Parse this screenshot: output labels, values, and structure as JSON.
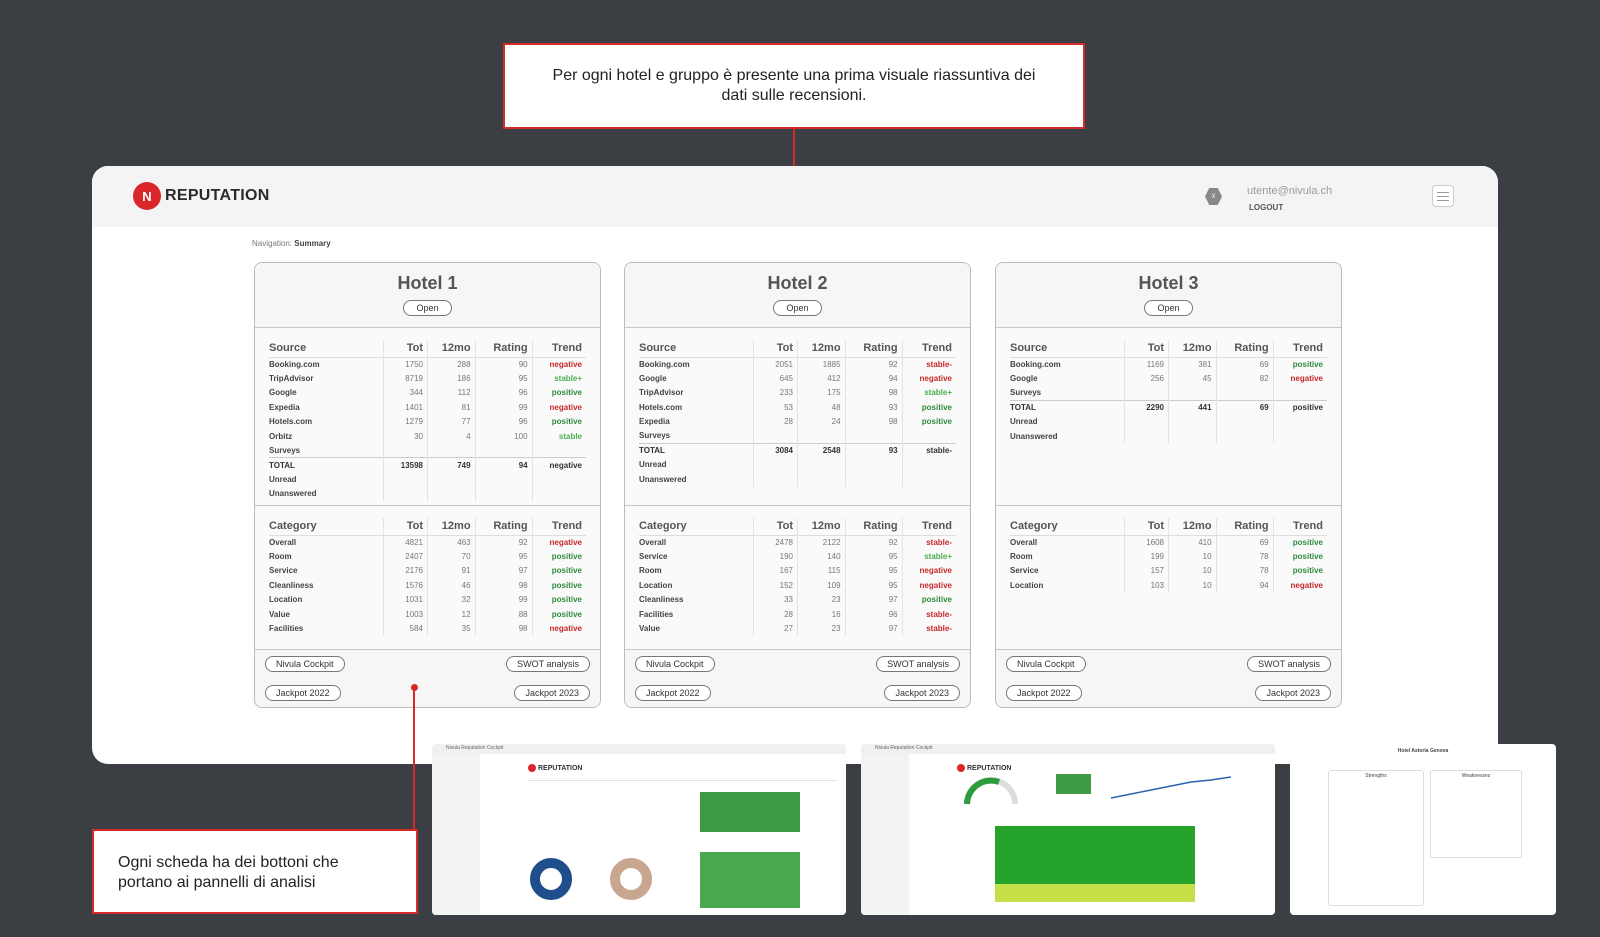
{
  "callouts": {
    "top": "Per ogni hotel e gruppo è presente una prima visuale riassuntiva dei dati sulle recensioni.",
    "bottom": "Ogni scheda ha dei bottoni che portano ai pannelli di analisi"
  },
  "app": {
    "logo_text": "REPUTATION",
    "logo_letter": "N",
    "user_badge": "X",
    "user_email": "utente@nivula.ch",
    "logout": "LOGOUT",
    "breadcrumb_prefix": "Navigation:",
    "breadcrumb_current": "Summary"
  },
  "columns": {
    "source": "Source",
    "category": "Category",
    "tot": "Tot",
    "12mo": "12mo",
    "rating": "Rating",
    "trend": "Trend"
  },
  "hotels": [
    {
      "name": "Hotel 1",
      "open": "Open",
      "sources": [
        [
          "Booking.com",
          "1750",
          "288",
          "90",
          "negative"
        ],
        [
          "TripAdvisor",
          "8719",
          "186",
          "95",
          "stable+"
        ],
        [
          "Google",
          "344",
          "112",
          "96",
          "positive"
        ],
        [
          "Expedia",
          "1401",
          "81",
          "99",
          "negative"
        ],
        [
          "Hotels.com",
          "1279",
          "77",
          "96",
          "positive"
        ],
        [
          "Orbitz",
          "30",
          "4",
          "100",
          "stable"
        ],
        [
          "Surveys",
          "",
          "",
          "",
          ""
        ],
        [
          "TOTAL",
          "13598",
          "749",
          "94",
          "negative"
        ],
        [
          "Unread",
          "",
          "",
          "",
          ""
        ],
        [
          "Unanswered",
          "",
          "",
          "",
          ""
        ]
      ],
      "categories": [
        [
          "Overall",
          "4821",
          "463",
          "92",
          "negative"
        ],
        [
          "Room",
          "2407",
          "70",
          "95",
          "positive"
        ],
        [
          "Service",
          "2176",
          "91",
          "97",
          "positive"
        ],
        [
          "Cleanliness",
          "1576",
          "46",
          "98",
          "positive"
        ],
        [
          "Location",
          "1031",
          "32",
          "99",
          "positive"
        ],
        [
          "Value",
          "1003",
          "12",
          "88",
          "positive"
        ],
        [
          "Facilities",
          "584",
          "35",
          "98",
          "negative"
        ]
      ],
      "buttons": [
        "Nivula Cockpit",
        "SWOT analysis",
        "Jackpot 2022",
        "Jackpot 2023"
      ]
    },
    {
      "name": "Hotel 2",
      "open": "Open",
      "sources": [
        [
          "Booking.com",
          "2051",
          "1885",
          "92",
          "stable-"
        ],
        [
          "Google",
          "645",
          "412",
          "94",
          "negative"
        ],
        [
          "TripAdvisor",
          "233",
          "175",
          "98",
          "stable+"
        ],
        [
          "Hotels.com",
          "53",
          "48",
          "93",
          "positive"
        ],
        [
          "Expedia",
          "28",
          "24",
          "98",
          "positive"
        ],
        [
          "Surveys",
          "",
          "",
          "",
          ""
        ],
        [
          "TOTAL",
          "3084",
          "2548",
          "93",
          "stable-"
        ],
        [
          "Unread",
          "",
          "",
          "",
          ""
        ],
        [
          "Unanswered",
          "",
          "",
          "",
          ""
        ]
      ],
      "categories": [
        [
          "Overall",
          "2478",
          "2122",
          "92",
          "stable-"
        ],
        [
          "Service",
          "190",
          "140",
          "95",
          "stable+"
        ],
        [
          "Room",
          "167",
          "115",
          "95",
          "negative"
        ],
        [
          "Location",
          "152",
          "109",
          "95",
          "negative"
        ],
        [
          "Cleanliness",
          "33",
          "23",
          "97",
          "positive"
        ],
        [
          "Facilities",
          "28",
          "16",
          "96",
          "stable-"
        ],
        [
          "Value",
          "27",
          "23",
          "97",
          "stable-"
        ]
      ],
      "buttons": [
        "Nivula Cockpit",
        "SWOT analysis",
        "Jackpot 2022",
        "Jackpot 2023"
      ]
    },
    {
      "name": "Hotel 3",
      "open": "Open",
      "sources": [
        [
          "Booking.com",
          "1169",
          "381",
          "69",
          "positive"
        ],
        [
          "Google",
          "256",
          "45",
          "82",
          "negative"
        ],
        [
          "Surveys",
          "",
          "",
          "",
          ""
        ],
        [
          "TOTAL",
          "2290",
          "441",
          "69",
          "positive"
        ],
        [
          "Unread",
          "",
          "",
          "",
          ""
        ],
        [
          "Unanswered",
          "",
          "",
          "",
          ""
        ]
      ],
      "categories": [
        [
          "Overall",
          "1608",
          "410",
          "69",
          "positive"
        ],
        [
          "Room",
          "199",
          "10",
          "78",
          "positive"
        ],
        [
          "Service",
          "157",
          "10",
          "78",
          "positive"
        ],
        [
          "Location",
          "103",
          "10",
          "94",
          "negative"
        ]
      ],
      "buttons": [
        "Nivula Cockpit",
        "SWOT analysis",
        "Jackpot 2022",
        "Jackpot 2023"
      ]
    }
  ],
  "previews": {
    "cockpit1_title": "Nivula Reputation Cockpit",
    "cockpit2_title": "Nivula Reputation Cockpit",
    "swot_title": "Hotel Astoria Genova",
    "swot_strengths": "Strengths",
    "swot_weaknesses": "Weaknesses"
  }
}
